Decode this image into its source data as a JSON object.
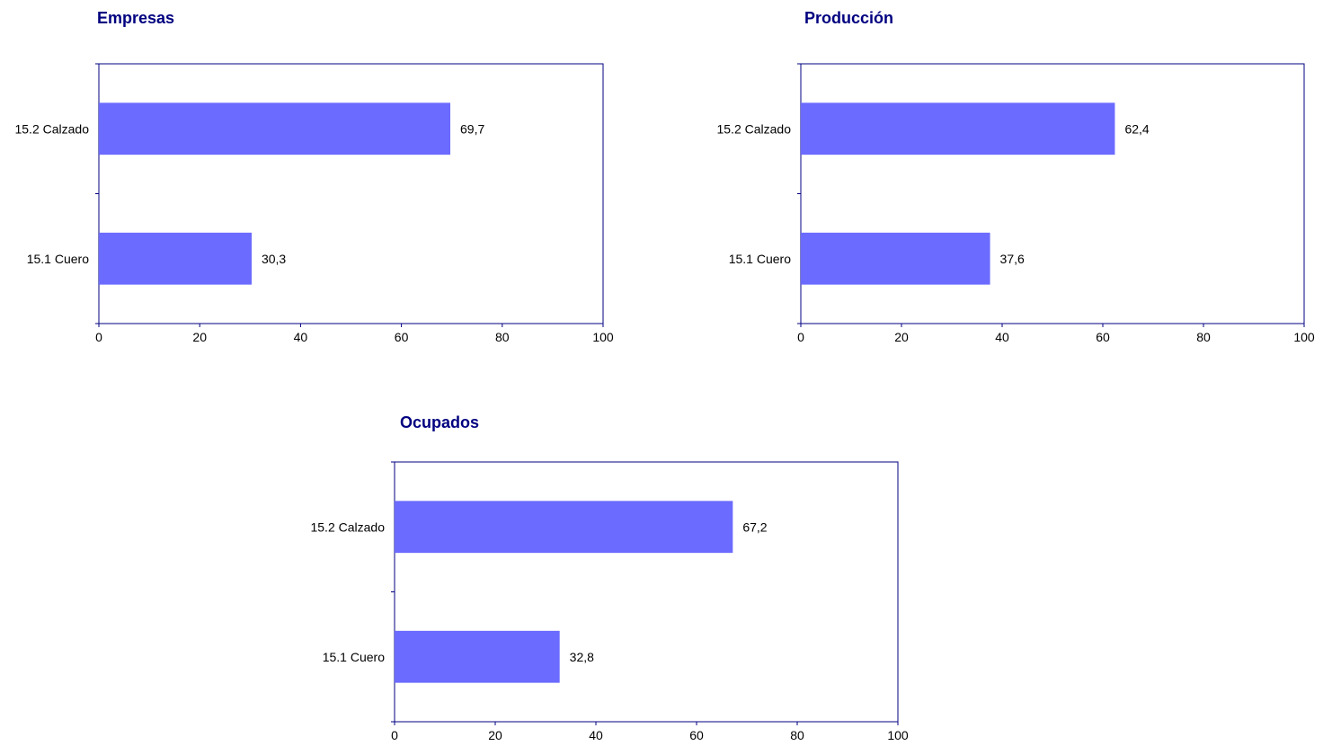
{
  "colors": {
    "bar": "#6b6bff",
    "axis": "#000080",
    "title": "#000080"
  },
  "chart_data": [
    {
      "type": "bar",
      "orientation": "horizontal",
      "title": "Empresas",
      "categories": [
        "15.2 Calzado",
        "15.1 Cuero"
      ],
      "values": [
        69.7,
        30.3
      ],
      "data_labels": [
        "69,7",
        "30,3"
      ],
      "xlim": [
        0,
        100
      ],
      "xticks": [
        0,
        20,
        40,
        60,
        80,
        100
      ],
      "xtick_labels": [
        "0",
        "20",
        "40",
        "60",
        "80",
        "100"
      ],
      "grid": false,
      "legend": "none"
    },
    {
      "type": "bar",
      "orientation": "horizontal",
      "title": "Producción",
      "categories": [
        "15.2 Calzado",
        "15.1 Cuero"
      ],
      "values": [
        62.4,
        37.6
      ],
      "data_labels": [
        "62,4",
        "37,6"
      ],
      "xlim": [
        0,
        100
      ],
      "xticks": [
        0,
        20,
        40,
        60,
        80,
        100
      ],
      "xtick_labels": [
        "0",
        "20",
        "40",
        "60",
        "80",
        "100"
      ],
      "grid": false,
      "legend": "none"
    },
    {
      "type": "bar",
      "orientation": "horizontal",
      "title": "Ocupados",
      "categories": [
        "15.2 Calzado",
        "15.1 Cuero"
      ],
      "values": [
        67.2,
        32.8
      ],
      "data_labels": [
        "67,2",
        "32,8"
      ],
      "xlim": [
        0,
        100
      ],
      "xticks": [
        0,
        20,
        40,
        60,
        80,
        100
      ],
      "xtick_labels": [
        "0",
        "20",
        "40",
        "60",
        "80",
        "100"
      ],
      "grid": false,
      "legend": "none"
    }
  ]
}
